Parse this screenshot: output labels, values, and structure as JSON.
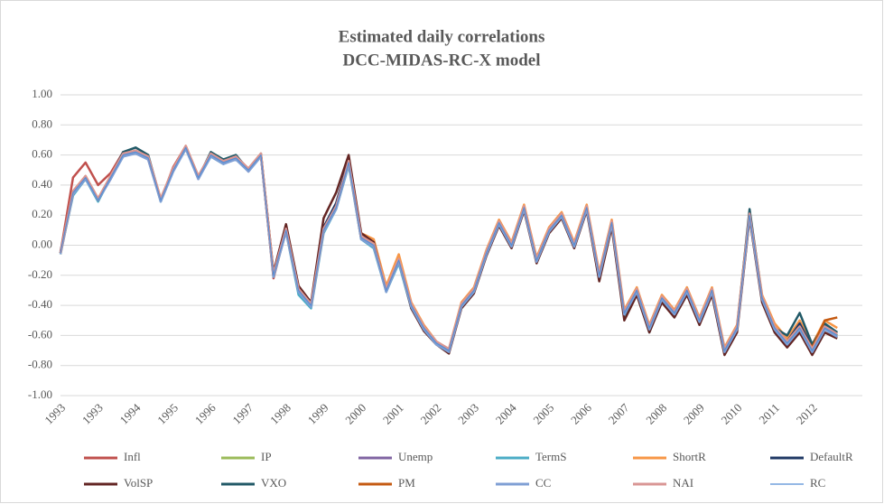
{
  "chart_data": {
    "type": "line",
    "title": "Estimated daily correlations",
    "subtitle": "DCC-MIDAS-RC-X model",
    "categories": [
      "1993",
      null,
      null,
      "1993",
      null,
      null,
      "1994",
      null,
      null,
      "1995",
      null,
      null,
      "1996",
      null,
      null,
      "1997",
      null,
      null,
      "1998",
      null,
      null,
      "1999",
      null,
      null,
      "2000",
      null,
      null,
      "2001",
      null,
      null,
      "2002",
      null,
      null,
      "2003",
      null,
      null,
      "2004",
      null,
      null,
      "2005",
      null,
      null,
      "2006",
      null,
      null,
      "2007",
      null,
      null,
      "2008",
      null,
      null,
      "2009",
      null,
      null,
      "2010",
      null,
      null,
      "2011",
      null,
      null,
      "2012",
      null,
      null
    ],
    "ylim": [
      -1,
      1
    ],
    "yticks": [
      {
        "value": -1,
        "label": "-1.00"
      },
      {
        "value": -0.8,
        "label": "-0.80"
      },
      {
        "value": -0.6,
        "label": "-0.60"
      },
      {
        "value": -0.4,
        "label": "-0.40"
      },
      {
        "value": -0.2,
        "label": "-0.20"
      },
      {
        "value": 0,
        "label": "0.00"
      },
      {
        "value": 0.2,
        "label": "0.20"
      },
      {
        "value": 0.4,
        "label": "0.40"
      },
      {
        "value": 0.6,
        "label": "0.60"
      },
      {
        "value": 0.8,
        "label": "0.80"
      },
      {
        "value": 1,
        "label": "1.00"
      }
    ],
    "grid": true,
    "legend": "bottom",
    "series": [
      {
        "name": "Infl",
        "color": "#c0504d",
        "values": [
          -0.05,
          0.45,
          0.55,
          0.4,
          0.48,
          0.62,
          0.62,
          0.58,
          0.3,
          0.52,
          0.66,
          0.45,
          0.6,
          0.55,
          0.58,
          0.5,
          0.6,
          -0.22,
          0.1,
          -0.3,
          -0.4,
          0.1,
          0.25,
          0.55,
          0.05,
          0.0,
          -0.3,
          -0.1,
          -0.4,
          -0.55,
          -0.65,
          -0.7,
          -0.4,
          -0.3,
          -0.05,
          0.15,
          0.0,
          0.25,
          -0.1,
          0.1,
          0.2,
          0.0,
          0.25,
          -0.2,
          0.15,
          -0.45,
          -0.3,
          -0.55,
          -0.35,
          -0.45,
          -0.3,
          -0.5,
          -0.3,
          -0.7,
          -0.55,
          0.2,
          -0.35,
          -0.55,
          -0.65,
          -0.55,
          -0.7,
          -0.55,
          -0.6
        ]
      },
      {
        "name": "IP",
        "color": "#9bbb59",
        "values": [
          -0.06,
          0.34,
          0.44,
          0.31,
          0.45,
          0.6,
          0.61,
          0.58,
          0.31,
          0.5,
          0.64,
          0.46,
          0.6,
          0.55,
          0.57,
          0.5,
          0.6,
          -0.19,
          0.1,
          -0.31,
          -0.4,
          0.11,
          0.25,
          0.54,
          0.05,
          0.01,
          -0.3,
          -0.1,
          -0.41,
          -0.55,
          -0.66,
          -0.7,
          -0.4,
          -0.3,
          -0.05,
          0.15,
          0.0,
          0.24,
          -0.1,
          0.1,
          0.2,
          0.0,
          0.25,
          -0.2,
          0.15,
          -0.45,
          -0.3,
          -0.55,
          -0.35,
          -0.46,
          -0.3,
          -0.5,
          -0.3,
          -0.7,
          -0.55,
          0.19,
          -0.35,
          -0.55,
          -0.65,
          -0.55,
          -0.7,
          -0.54,
          -0.6
        ]
      },
      {
        "name": "Unemp",
        "color": "#8064a2",
        "values": [
          -0.04,
          0.35,
          0.46,
          0.3,
          0.44,
          0.6,
          0.63,
          0.57,
          0.3,
          0.51,
          0.65,
          0.44,
          0.61,
          0.55,
          0.58,
          0.49,
          0.6,
          -0.2,
          0.11,
          -0.3,
          -0.41,
          0.1,
          0.26,
          0.55,
          0.04,
          0.0,
          -0.31,
          -0.1,
          -0.4,
          -0.56,
          -0.65,
          -0.71,
          -0.4,
          -0.29,
          -0.05,
          0.16,
          0.0,
          0.25,
          -0.11,
          0.1,
          0.21,
          0.0,
          0.26,
          -0.2,
          0.14,
          -0.46,
          -0.3,
          -0.56,
          -0.35,
          -0.45,
          -0.31,
          -0.5,
          -0.3,
          -0.71,
          -0.55,
          0.21,
          -0.36,
          -0.55,
          -0.66,
          -0.55,
          -0.71,
          -0.55,
          -0.61
        ]
      },
      {
        "name": "TermS",
        "color": "#4bacc6",
        "values": [
          -0.05,
          0.33,
          0.44,
          0.29,
          0.45,
          0.59,
          0.62,
          0.58,
          0.29,
          0.5,
          0.65,
          0.45,
          0.59,
          0.54,
          0.58,
          0.5,
          0.61,
          -0.21,
          0.09,
          -0.33,
          -0.42,
          0.08,
          0.24,
          0.53,
          0.04,
          -0.02,
          -0.31,
          -0.12,
          -0.42,
          -0.56,
          -0.65,
          -0.69,
          -0.41,
          -0.31,
          -0.06,
          0.14,
          -0.01,
          0.24,
          -0.11,
          0.09,
          0.19,
          -0.01,
          0.24,
          -0.22,
          0.14,
          -0.48,
          -0.32,
          -0.58,
          -0.37,
          -0.48,
          -0.32,
          -0.52,
          -0.31,
          -0.72,
          -0.56,
          0.18,
          -0.36,
          -0.56,
          -0.64,
          -0.56,
          -0.69,
          -0.54,
          -0.59
        ]
      },
      {
        "name": "ShortR",
        "color": "#f79646",
        "values": [
          -0.05,
          0.36,
          0.46,
          0.31,
          0.46,
          0.61,
          0.62,
          0.59,
          0.31,
          0.51,
          0.66,
          0.46,
          0.6,
          0.56,
          0.59,
          0.51,
          0.61,
          -0.18,
          0.11,
          -0.29,
          -0.39,
          0.12,
          0.27,
          0.56,
          0.08,
          0.04,
          -0.27,
          -0.06,
          -0.38,
          -0.53,
          -0.64,
          -0.69,
          -0.38,
          -0.28,
          -0.03,
          0.17,
          0.02,
          0.27,
          -0.08,
          0.12,
          0.22,
          0.02,
          0.27,
          -0.18,
          0.17,
          -0.43,
          -0.28,
          -0.53,
          -0.33,
          -0.43,
          -0.28,
          -0.48,
          -0.28,
          -0.68,
          -0.53,
          0.22,
          -0.33,
          -0.52,
          -0.62,
          -0.5,
          -0.66,
          -0.5,
          -0.55
        ]
      },
      {
        "name": "DefaultR",
        "color": "#1f3864",
        "values": [
          -0.05,
          0.35,
          0.45,
          0.3,
          0.45,
          0.6,
          0.62,
          0.58,
          0.3,
          0.5,
          0.65,
          0.45,
          0.6,
          0.55,
          0.58,
          0.5,
          0.6,
          -0.2,
          0.1,
          -0.3,
          -0.4,
          0.12,
          0.28,
          0.57,
          0.05,
          0.0,
          -0.3,
          -0.1,
          -0.4,
          -0.55,
          -0.65,
          -0.7,
          -0.4,
          -0.3,
          -0.05,
          0.15,
          0.0,
          0.25,
          -0.1,
          0.1,
          0.2,
          0.0,
          0.25,
          -0.2,
          0.15,
          -0.46,
          -0.3,
          -0.55,
          -0.35,
          -0.45,
          -0.3,
          -0.5,
          -0.3,
          -0.7,
          -0.55,
          0.2,
          -0.35,
          -0.55,
          -0.64,
          -0.52,
          -0.68,
          -0.53,
          -0.58
        ]
      },
      {
        "name": "VolSP",
        "color": "#632523",
        "values": [
          -0.05,
          0.35,
          0.45,
          0.3,
          0.45,
          0.6,
          0.62,
          0.58,
          0.3,
          0.5,
          0.65,
          0.45,
          0.6,
          0.55,
          0.58,
          0.5,
          0.6,
          -0.18,
          0.14,
          -0.27,
          -0.38,
          0.18,
          0.35,
          0.6,
          0.08,
          0.02,
          -0.3,
          -0.1,
          -0.42,
          -0.57,
          -0.66,
          -0.72,
          -0.42,
          -0.32,
          -0.07,
          0.13,
          -0.02,
          0.23,
          -0.12,
          0.08,
          0.18,
          -0.02,
          0.23,
          -0.24,
          0.12,
          -0.5,
          -0.33,
          -0.58,
          -0.38,
          -0.48,
          -0.33,
          -0.53,
          -0.33,
          -0.73,
          -0.58,
          0.18,
          -0.38,
          -0.58,
          -0.68,
          -0.58,
          -0.73,
          -0.58,
          -0.62
        ]
      },
      {
        "name": "VXO",
        "color": "#215967",
        "values": [
          -0.05,
          0.35,
          0.45,
          0.3,
          0.45,
          0.62,
          0.65,
          0.6,
          0.3,
          0.5,
          0.65,
          0.45,
          0.62,
          0.57,
          0.6,
          0.5,
          0.6,
          -0.2,
          0.1,
          -0.3,
          -0.4,
          0.1,
          0.25,
          0.55,
          0.05,
          0.0,
          -0.3,
          -0.1,
          -0.4,
          -0.55,
          -0.65,
          -0.7,
          -0.4,
          -0.3,
          -0.05,
          0.15,
          0.0,
          0.25,
          -0.1,
          0.1,
          0.2,
          0.0,
          0.25,
          -0.2,
          0.15,
          -0.45,
          -0.3,
          -0.55,
          -0.35,
          -0.45,
          -0.3,
          -0.5,
          -0.3,
          -0.7,
          -0.55,
          0.24,
          -0.35,
          -0.55,
          -0.6,
          -0.45,
          -0.66,
          -0.52,
          -0.58
        ]
      },
      {
        "name": "PM",
        "color": "#c55a11",
        "values": [
          -0.05,
          0.35,
          0.45,
          0.3,
          0.45,
          0.6,
          0.62,
          0.58,
          0.3,
          0.5,
          0.65,
          0.45,
          0.6,
          0.55,
          0.58,
          0.5,
          0.6,
          -0.2,
          0.1,
          -0.3,
          -0.4,
          0.1,
          0.25,
          0.55,
          0.05,
          0.0,
          -0.3,
          -0.1,
          -0.4,
          -0.55,
          -0.65,
          -0.7,
          -0.4,
          -0.3,
          -0.05,
          0.15,
          0.0,
          0.25,
          -0.1,
          0.1,
          0.2,
          0.0,
          0.25,
          -0.2,
          0.15,
          -0.45,
          -0.3,
          -0.55,
          -0.35,
          -0.45,
          -0.3,
          -0.5,
          -0.3,
          -0.7,
          -0.55,
          0.2,
          -0.35,
          -0.55,
          -0.65,
          -0.55,
          -0.68,
          -0.5,
          -0.48
        ]
      },
      {
        "name": "CC",
        "color": "#7f9fd4",
        "values": [
          -0.06,
          0.34,
          0.44,
          0.3,
          0.44,
          0.59,
          0.61,
          0.57,
          0.29,
          0.49,
          0.64,
          0.44,
          0.59,
          0.54,
          0.57,
          0.49,
          0.59,
          -0.21,
          0.09,
          -0.31,
          -0.41,
          0.09,
          0.24,
          0.54,
          0.04,
          -0.01,
          -0.31,
          -0.11,
          -0.41,
          -0.56,
          -0.66,
          -0.71,
          -0.41,
          -0.31,
          -0.06,
          0.14,
          -0.01,
          0.24,
          -0.11,
          0.09,
          0.19,
          -0.01,
          0.24,
          -0.21,
          0.14,
          -0.46,
          -0.31,
          -0.56,
          -0.36,
          -0.46,
          -0.31,
          -0.51,
          -0.31,
          -0.71,
          -0.56,
          0.19,
          -0.36,
          -0.56,
          -0.66,
          -0.56,
          -0.71,
          -0.56,
          -0.61
        ]
      },
      {
        "name": "NAI",
        "color": "#d99694",
        "values": [
          -0.05,
          0.36,
          0.46,
          0.31,
          0.46,
          0.61,
          0.63,
          0.59,
          0.31,
          0.51,
          0.66,
          0.46,
          0.61,
          0.56,
          0.59,
          0.51,
          0.61,
          -0.19,
          0.11,
          -0.29,
          -0.39,
          0.11,
          0.26,
          0.56,
          0.06,
          0.01,
          -0.29,
          -0.09,
          -0.39,
          -0.54,
          -0.64,
          -0.69,
          -0.39,
          -0.29,
          -0.04,
          0.16,
          0.01,
          0.26,
          -0.09,
          0.11,
          0.21,
          0.01,
          0.26,
          -0.19,
          0.16,
          -0.44,
          -0.29,
          -0.54,
          -0.34,
          -0.44,
          -0.29,
          -0.49,
          -0.29,
          -0.69,
          -0.54,
          0.21,
          -0.34,
          -0.54,
          -0.64,
          -0.54,
          -0.69,
          -0.54,
          -0.59
        ]
      },
      {
        "name": "RC",
        "color": "#558ed5",
        "values": [
          -0.05,
          0.35,
          0.45,
          0.3,
          0.45,
          0.6,
          0.62,
          0.58,
          0.3,
          0.5,
          0.65,
          0.45,
          0.6,
          0.55,
          0.58,
          0.5,
          0.6,
          -0.2,
          0.1,
          -0.3,
          -0.4,
          0.1,
          0.25,
          0.55,
          0.05,
          0.0,
          -0.3,
          -0.1,
          -0.4,
          -0.55,
          -0.65,
          -0.7,
          -0.4,
          -0.3,
          -0.05,
          0.15,
          0.0,
          0.25,
          -0.1,
          0.1,
          0.2,
          0.0,
          0.25,
          -0.2,
          0.15,
          -0.45,
          -0.3,
          -0.55,
          -0.35,
          -0.45,
          -0.3,
          -0.5,
          -0.3,
          -0.7,
          -0.55,
          0.2,
          -0.35,
          -0.55,
          -0.65,
          -0.55,
          -0.7,
          -0.55,
          -0.6
        ]
      }
    ]
  }
}
